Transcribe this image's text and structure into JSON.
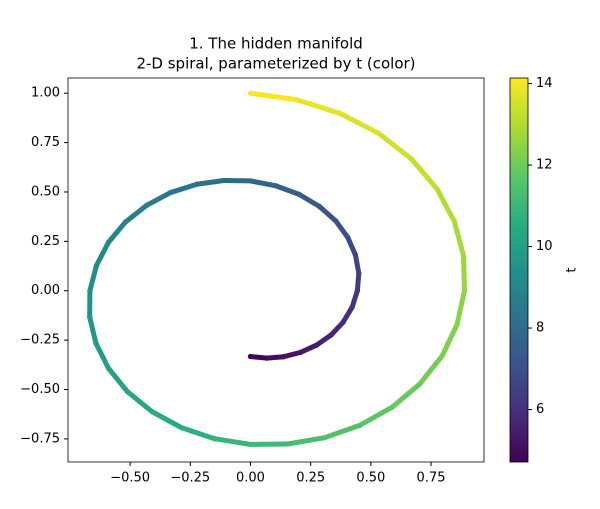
{
  "chart_data": {
    "type": "scatter",
    "title": "1. The hidden manifold",
    "subtitle": "2-D spiral, parameterized by t (color)",
    "colorbar_label": "t",
    "colormap": "viridis",
    "x": [
      0,
      0.068,
      0.138,
      0.208,
      0.275,
      0.335,
      0.385,
      0.422,
      0.444,
      0.45,
      0.436,
      0.404,
      0.354,
      0.286,
      0.202,
      0.106,
      0,
      -0.111,
      -0.223,
      -0.332,
      -0.432,
      -0.52,
      -0.59,
      -0.64,
      -0.667,
      -0.668,
      -0.642,
      -0.589,
      -0.511,
      -0.409,
      -0.287,
      -0.149,
      0,
      0.154,
      0.308,
      0.455,
      0.589,
      0.704,
      0.796,
      0.858,
      0.889,
      0.885,
      0.847,
      0.774,
      0.668,
      0.532,
      0.372,
      0.192,
      0
    ],
    "values": [
      -0.333,
      -0.341,
      -0.334,
      -0.312,
      -0.275,
      -0.224,
      -0.159,
      -0.084,
      0,
      0.089,
      0.181,
      0.27,
      0.354,
      0.427,
      0.488,
      0.531,
      0.556,
      0.558,
      0.539,
      0.497,
      0.432,
      0.347,
      0.245,
      0.127,
      0,
      -0.133,
      -0.266,
      -0.394,
      -0.511,
      -0.612,
      -0.693,
      -0.749,
      -0.778,
      -0.776,
      -0.744,
      -0.681,
      -0.589,
      -0.471,
      -0.33,
      -0.171,
      0,
      0.176,
      0.351,
      0.517,
      0.668,
      0.797,
      0.898,
      0.967,
      1
    ],
    "t": [
      4.712,
      4.909,
      5.105,
      5.301,
      5.498,
      5.694,
      5.89,
      6.087,
      6.283,
      6.48,
      6.676,
      6.872,
      7.069,
      7.265,
      7.461,
      7.658,
      7.854,
      8.05,
      8.247,
      8.443,
      8.639,
      8.836,
      9.032,
      9.228,
      9.425,
      9.621,
      9.817,
      10.014,
      10.21,
      10.407,
      10.603,
      10.799,
      10.996,
      11.192,
      11.388,
      11.585,
      11.781,
      11.977,
      12.174,
      12.37,
      12.566,
      12.763,
      12.959,
      13.155,
      13.352,
      13.548,
      13.744,
      13.941,
      14.137
    ],
    "xlim": [
      -0.758,
      0.97
    ],
    "ylim": [
      -0.867,
      1.077
    ],
    "clim": [
      4.712,
      14.137
    ],
    "xticks": [
      {
        "value": -0.5,
        "label": "−0.50"
      },
      {
        "value": -0.25,
        "label": "−0.25"
      },
      {
        "value": 0,
        "label": "0.00"
      },
      {
        "value": 0.25,
        "label": "0.25"
      },
      {
        "value": 0.5,
        "label": "0.50"
      },
      {
        "value": 0.75,
        "label": "0.75"
      }
    ],
    "yticks": [
      {
        "value": -0.75,
        "label": "−0.75"
      },
      {
        "value": -0.5,
        "label": "−0.50"
      },
      {
        "value": -0.25,
        "label": "−0.25"
      },
      {
        "value": 0,
        "label": "0.00"
      },
      {
        "value": 0.25,
        "label": "0.25"
      },
      {
        "value": 0.5,
        "label": "0.50"
      },
      {
        "value": 0.75,
        "label": "0.75"
      },
      {
        "value": 1,
        "label": "1.00"
      }
    ],
    "cticks": [
      6,
      8,
      10,
      12,
      14
    ],
    "grid": false
  }
}
